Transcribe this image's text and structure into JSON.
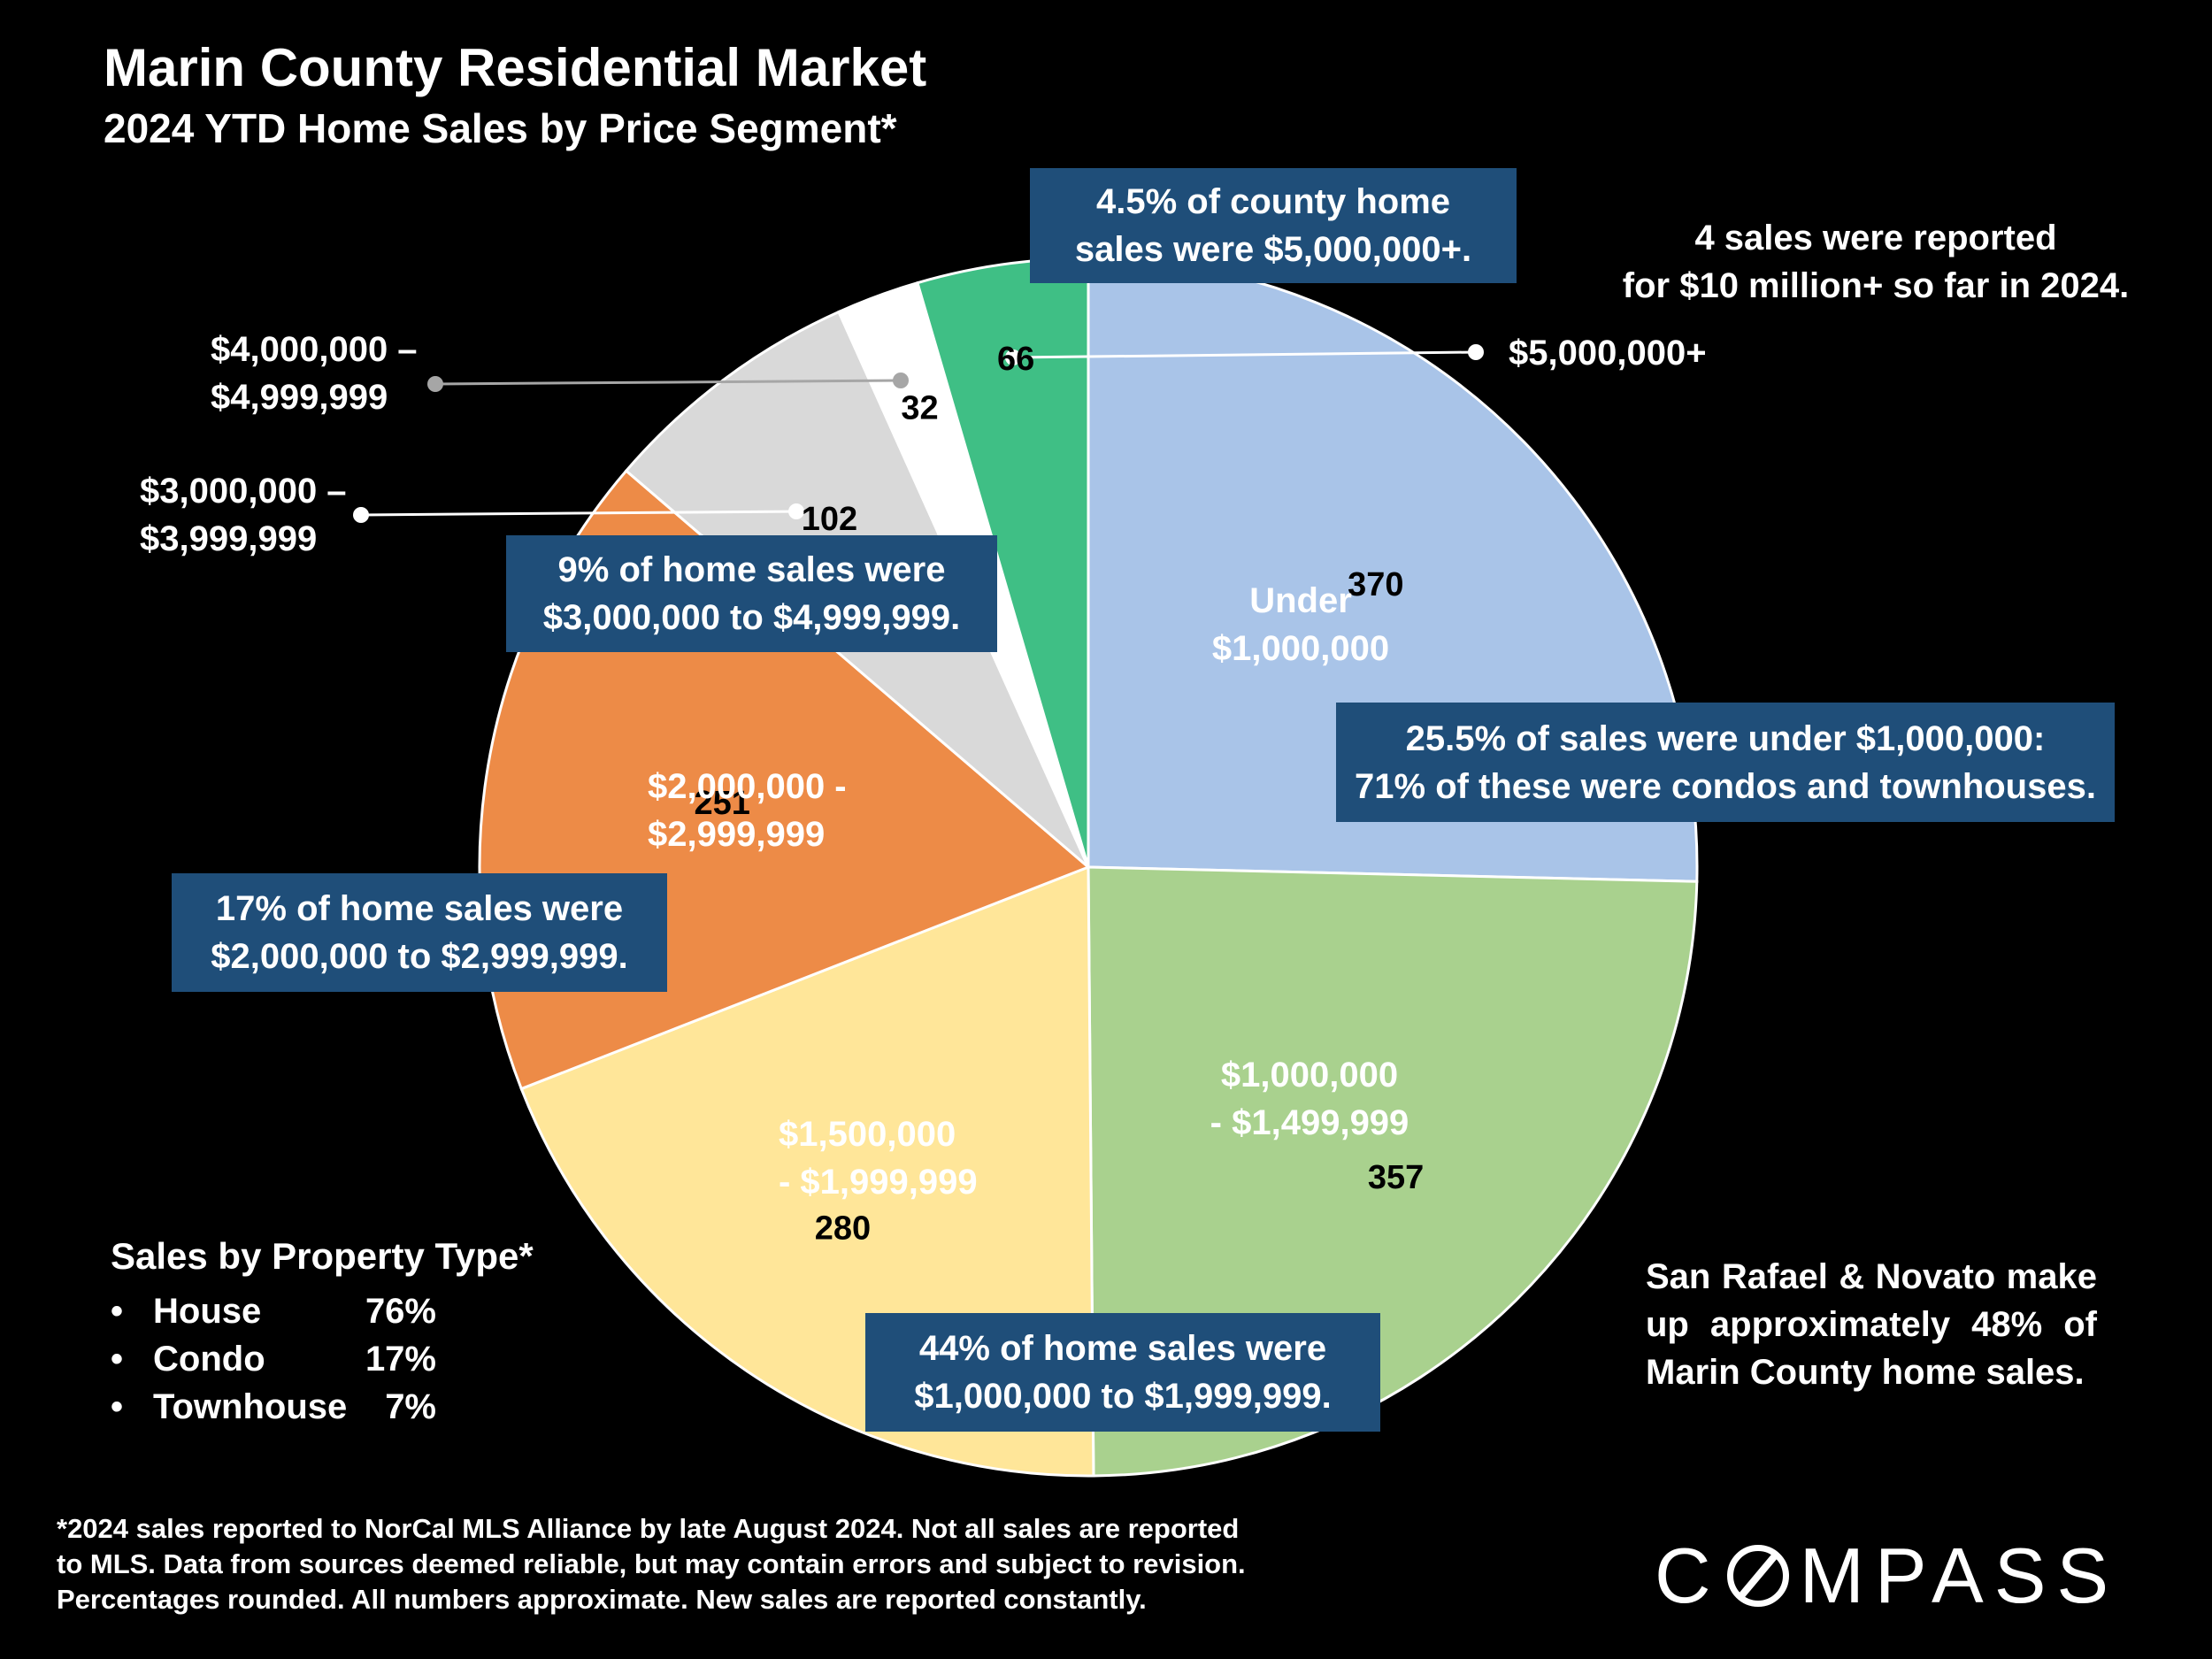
{
  "header": {
    "title": "Marin County Residential Market",
    "subtitle": "2024 YTD Home Sales by Price Segment*"
  },
  "chart_data": {
    "type": "pie",
    "title": "Marin County Residential Market",
    "subtitle": "2024 YTD Home Sales by Price Segment*",
    "categories": [
      "Under $1,000,000",
      "$1,000,000 - $1,499,999",
      "$1,500,000 - $1,999,999",
      "$2,000,000 - $2,999,999",
      "$3,000,000 – $3,999,999",
      "$4,000,000 – $4,999,999",
      "$5,000,000+"
    ],
    "values": [
      370,
      357,
      280,
      251,
      102,
      32,
      66
    ],
    "colors": [
      "#a9c4e8",
      "#a9d18e",
      "#ffe699",
      "#ed8b47",
      "#d9d9d9",
      "#ffffff",
      "#3fbf85"
    ],
    "start": "12 o'clock",
    "direction": "clockwise"
  },
  "labels": {
    "under1m": [
      "Under",
      "$1,000,000"
    ],
    "r1m": [
      "$1,000,000",
      "- $1,499,999"
    ],
    "r15m": [
      "$1,500,000",
      "- $1,999,999"
    ],
    "r2m": [
      "$2,000,000 -",
      "$2,999,999"
    ],
    "r3m": [
      "$3,000,000 –",
      "$3,999,999"
    ],
    "r4m": [
      "$4,000,000 –",
      "$4,999,999"
    ],
    "r5m": "$5,000,000+"
  },
  "callouts": {
    "top": [
      "4.5% of county home",
      "sales were $5,000,000+."
    ],
    "nine": [
      "9% of home sales were",
      "$3,000,000 to $4,999,999."
    ],
    "under": [
      "25.5% of sales were under $1,000,000:",
      "71% of these were condos and townhouses."
    ],
    "seventeen": [
      "17% of home sales were",
      "$2,000,000 to $2,999,999."
    ],
    "fortyfour": [
      "44% of home sales were",
      "$1,000,000 to $1,999,999."
    ]
  },
  "notes": {
    "ten_million": [
      "4 sales were reported",
      "for $10 million+ so far in 2024."
    ],
    "san_rafael": [
      "San Rafael & Novato make",
      "up approximately 48% of",
      "Marin County home sales."
    ]
  },
  "property_type": {
    "title": "Sales by Property Type*",
    "items": [
      {
        "type": "House",
        "pct": "76%"
      },
      {
        "type": "Condo",
        "pct": "17%"
      },
      {
        "type": "Townhouse",
        "pct": "7%"
      }
    ],
    "bullet": "•"
  },
  "footnote": [
    "*2024 sales reported to NorCal MLS Alliance by late August 2024. Not all sales are reported",
    "to MLS. Data from sources deemed reliable, but may contain errors and subject to revision.",
    "Percentages rounded. All numbers approximate. New sales are reported constantly."
  ],
  "logo": {
    "left": "C",
    "right": "MPASS"
  }
}
